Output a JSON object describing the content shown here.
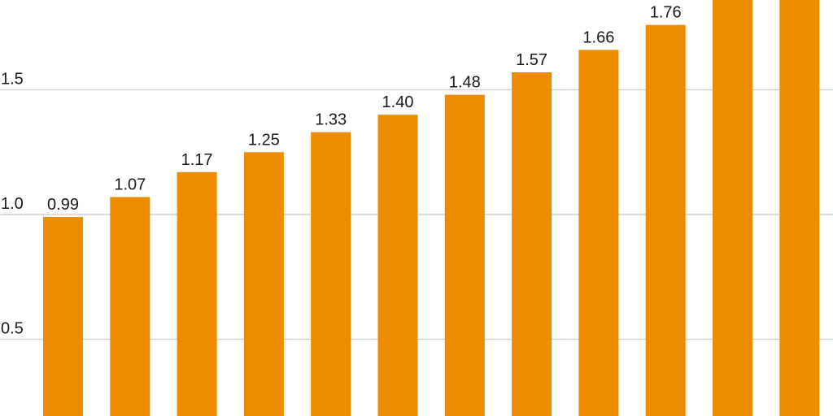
{
  "chart_data": {
    "type": "bar",
    "title": "",
    "xlabel": "",
    "ylabel": "",
    "ylim": [
      0,
      1.86
    ],
    "yticks": [
      {
        "value": 0.5,
        "label": "0.5"
      },
      {
        "value": 1.0,
        "label": "1.0"
      },
      {
        "value": 1.5,
        "label": "1.5"
      }
    ],
    "grid": true,
    "bar_color": "#EE8C00",
    "grid_color": "#d0d0d0",
    "values": [
      0.99,
      1.07,
      1.17,
      1.25,
      1.33,
      1.4,
      1.48,
      1.57,
      1.66,
      1.76,
      null,
      null
    ],
    "labels": [
      "0.99",
      "1.07",
      "1.17",
      "1.25",
      "1.33",
      "1.40",
      "1.48",
      "1.57",
      "1.66",
      "1.76",
      "",
      ""
    ]
  }
}
